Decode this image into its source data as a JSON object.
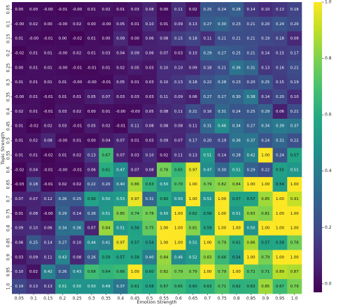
{
  "chart_data": {
    "type": "heatmap",
    "colormap": "viridis",
    "xlabel": "Emotion Strength",
    "ylabel": "Topic Strength",
    "x_categories": [
      "0.05",
      "0.1",
      "0.15",
      "0.2",
      "0.25",
      "0.3",
      "0.35",
      "0.4",
      "0.45",
      "0.5",
      "0.55",
      "0.6",
      "0.65",
      "0.7",
      "0.75",
      "0.8",
      "0.85",
      "0.9",
      "0.95",
      "1.0"
    ],
    "y_categories": [
      "0.05",
      "0.1",
      "0.15",
      "0.2",
      "0.25",
      "0.3",
      "0.35",
      "0.4",
      "0.45",
      "0.5",
      "0.55",
      "0.6",
      "0.65",
      "0.7",
      "0.75",
      "0.8",
      "0.85",
      "0.9",
      "0.95",
      "1.0"
    ],
    "values": [
      [
        0.0,
        0.0,
        -0.0,
        -0.01,
        -0.0,
        0.01,
        0.02,
        0.01,
        0.03,
        0.08,
        0.0,
        0.11,
        0.02,
        0.25,
        0.24,
        0.28,
        0.14,
        0.1,
        0.13,
        0.18
      ],
      [
        -0.0,
        0.02,
        0.0,
        -0.0,
        0.02,
        0.0,
        -0.0,
        0.05,
        0.01,
        0.1,
        0.01,
        0.09,
        0.13,
        0.27,
        0.3,
        0.23,
        0.21,
        0.2,
        0.24,
        0.2
      ],
      [
        0.01,
        -0.0,
        -0.01,
        0.0,
        -0.02,
        0.01,
        0.0,
        0.09,
        0.0,
        0.06,
        0.08,
        0.15,
        0.18,
        0.11,
        0.21,
        0.21,
        0.21,
        0.19,
        0.18,
        0.09
      ],
      [
        -0.02,
        0.01,
        0.01,
        -0.0,
        0.02,
        0.01,
        0.03,
        0.04,
        0.09,
        0.06,
        0.07,
        0.03,
        0.1,
        0.29,
        0.27,
        0.25,
        0.21,
        0.14,
        0.15,
        0.17
      ],
      [
        0.0,
        0.01,
        0.01,
        -0.0,
        -0.01,
        -0.01,
        0.01,
        0.02,
        0.05,
        0.03,
        0.1,
        0.1,
        0.09,
        0.18,
        0.21,
        0.36,
        0.31,
        0.13,
        0.16,
        0.21
      ],
      [
        0.01,
        0.01,
        0.01,
        0.01,
        -0.0,
        -0.0,
        -0.01,
        0.05,
        0.01,
        0.03,
        0.1,
        0.13,
        0.18,
        0.22,
        0.28,
        0.23,
        0.2,
        0.25,
        0.15,
        0.19
      ],
      [
        -0.0,
        0.01,
        -0.01,
        0.01,
        0.01,
        0.05,
        0.07,
        0.03,
        0.03,
        0.03,
        0.11,
        0.09,
        0.06,
        0.27,
        0.27,
        0.3,
        0.38,
        0.14,
        0.2,
        0.1
      ],
      [
        0.02,
        0.01,
        -0.01,
        0.03,
        0.02,
        0.0,
        0.01,
        -0.0,
        -0.0,
        0.05,
        0.08,
        0.11,
        0.21,
        0.16,
        0.31,
        0.24,
        0.25,
        0.29,
        0.06,
        0.21
      ],
      [
        0.01,
        -0.02,
        0.02,
        0.03,
        -0.01,
        0.05,
        0.02,
        -0.01,
        0.11,
        0.08,
        0.08,
        0.08,
        0.11,
        0.31,
        0.46,
        0.34,
        0.27,
        0.34,
        0.39,
        0.37
      ],
      [
        0.01,
        0.02,
        0.08,
        -0.0,
        0.01,
        0.0,
        0.04,
        0.07,
        0.01,
        0.03,
        0.09,
        0.07,
        0.17,
        0.2,
        0.19,
        0.36,
        0.37,
        0.24,
        0.31,
        0.22
      ],
      [
        0.01,
        0.01,
        -0.02,
        0.01,
        0.02,
        0.13,
        0.67,
        0.07,
        0.03,
        0.1,
        0.02,
        0.11,
        0.13,
        0.51,
        0.14,
        0.28,
        0.42,
        1.0,
        0.24,
        0.57
      ],
      [
        -0.02,
        0.04,
        -0.01,
        -0.0,
        -0.01,
        0.06,
        0.61,
        0.47,
        0.07,
        0.08,
        0.78,
        0.65,
        0.97,
        0.47,
        0.3,
        0.51,
        0.29,
        0.22,
        0.55,
        0.51
      ],
      [
        -0.03,
        0.18,
        -0.01,
        0.02,
        0.02,
        0.22,
        0.2,
        0.4,
        0.86,
        0.63,
        0.5,
        0.7,
        1.0,
        0.79,
        0.82,
        0.84,
        1.0,
        1.0,
        0.54,
        1.0
      ],
      [
        0.07,
        0.07,
        0.12,
        0.26,
        0.25,
        0.56,
        0.5,
        0.53,
        0.97,
        0.31,
        0.6,
        0.5,
        1.0,
        0.51,
        1.0,
        0.57,
        0.57,
        0.85,
        1.0,
        0.91
      ],
      [
        0.01,
        0.08,
        -0.0,
        0.29,
        0.14,
        0.26,
        0.51,
        0.8,
        0.74,
        0.78,
        0.5,
        1.0,
        0.62,
        0.58,
        1.0,
        0.51,
        0.83,
        0.81,
        1.0,
        1.0
      ],
      [
        0.09,
        0.1,
        0.06,
        0.34,
        0.36,
        0.07,
        0.84,
        0.51,
        0.56,
        0.75,
        1.0,
        1.0,
        0.81,
        0.59,
        1.0,
        1.0,
        0.5,
        1.0,
        1.0,
        1.0
      ],
      [
        0.06,
        0.25,
        0.14,
        0.27,
        0.1,
        0.44,
        0.41,
        0.97,
        0.57,
        0.54,
        1.0,
        1.0,
        0.51,
        1.0,
        0.79,
        0.61,
        0.86,
        0.57,
        0.58,
        0.78
      ],
      [
        0.03,
        0.09,
        0.11,
        0.43,
        0.08,
        0.26,
        0.59,
        0.57,
        0.58,
        0.4,
        0.84,
        0.46,
        0.52,
        0.83,
        0.66,
        0.54,
        1.0,
        0.79,
        1.0,
        1.0
      ],
      [
        0.1,
        0.02,
        0.42,
        0.26,
        0.43,
        0.68,
        0.64,
        0.66,
        1.0,
        0.6,
        0.82,
        0.79,
        0.79,
        1.0,
        0.79,
        1.0,
        0.72,
        0.71,
        0.89,
        0.87
      ],
      [
        0.19,
        0.13,
        0.13,
        0.51,
        0.5,
        0.5,
        0.49,
        0.37,
        0.61,
        0.58,
        0.67,
        0.65,
        0.6,
        0.63,
        0.71,
        0.62,
        0.63,
        0.85,
        0.67,
        0.79
      ]
    ],
    "value_labels": [
      [
        "0.00",
        "0.00",
        "-0.00",
        "-0.01",
        "-0.00",
        "0.01",
        "0.02",
        "0.01",
        "0.03",
        "0.08",
        "0.00",
        "0.11",
        "0.02",
        "0.25",
        "0.24",
        "0.28",
        "0.14",
        "0.10",
        "0.13",
        "0.18"
      ],
      [
        "-0.00",
        "0.02",
        "0.00",
        "-0.00",
        "0.02",
        "0.00",
        "-0.00",
        "0.05",
        "0.01",
        "0.10",
        "0.01",
        "0.09",
        "0.13",
        "0.27",
        "0.30",
        "0.23",
        "0.21",
        "0.20",
        "0.24",
        "0.20"
      ],
      [
        "0.01",
        "-0.00",
        "-0.01",
        "0.00",
        "-0.02",
        "0.01",
        "0.00",
        "0.09",
        "0.00",
        "0.06",
        "0.08",
        "0.15",
        "0.18",
        "0.11",
        "0.21",
        "0.21",
        "0.21",
        "0.19",
        "0.18",
        "0.09"
      ],
      [
        "-0.02",
        "0.01",
        "0.01",
        "-0.00",
        "0.02",
        "0.01",
        "0.03",
        "0.04",
        "0.09",
        "0.06",
        "0.07",
        "0.03",
        "0.10",
        "0.29",
        "0.27",
        "0.25",
        "0.21",
        "0.14",
        "0.15",
        "0.17"
      ],
      [
        "0.00",
        "0.01",
        "0.01",
        "-0.00",
        "-0.01",
        "-0.01",
        "0.01",
        "0.02",
        "0.05",
        "0.03",
        "0.10",
        "0.10",
        "0.09",
        "0.18",
        "0.21",
        "0.36",
        "0.31",
        "0.13",
        "0.16",
        "0.21"
      ],
      [
        "0.01",
        "0.01",
        "0.01",
        "0.01",
        "-0.00",
        "-0.00",
        "-0.01",
        "0.05",
        "0.01",
        "0.03",
        "0.10",
        "0.13",
        "0.18",
        "0.22",
        "0.28",
        "0.23",
        "0.20",
        "0.25",
        "0.15",
        "0.19"
      ],
      [
        "-0.00",
        "0.01",
        "-0.01",
        "0.01",
        "0.01",
        "0.05",
        "0.07",
        "0.03",
        "0.03",
        "0.03",
        "0.11",
        "0.09",
        "0.06",
        "0.27",
        "0.27",
        "0.30",
        "0.38",
        "0.14",
        "0.20",
        "0.10"
      ],
      [
        "0.02",
        "0.01",
        "-0.01",
        "0.03",
        "0.02",
        "0.00",
        "0.01",
        "-0.00",
        "-0.00",
        "0.05",
        "0.08",
        "0.11",
        "0.21",
        "0.16",
        "0.31",
        "0.24",
        "0.25",
        "0.29",
        "0.06",
        "0.21"
      ],
      [
        "0.01",
        "-0.02",
        "0.02",
        "0.03",
        "-0.01",
        "0.05",
        "0.02",
        "-0.01",
        "0.11",
        "0.08",
        "0.08",
        "0.08",
        "0.11",
        "0.31",
        "0.46",
        "0.34",
        "0.27",
        "0.34",
        "0.39",
        "0.37"
      ],
      [
        "0.01",
        "0.02",
        "0.08",
        "-0.00",
        "0.01",
        "0.00",
        "0.04",
        "0.07",
        "0.01",
        "0.03",
        "0.09",
        "0.07",
        "0.17",
        "0.20",
        "0.19",
        "0.36",
        "0.37",
        "0.24",
        "0.31",
        "0.22"
      ],
      [
        "0.01",
        "0.01",
        "-0.02",
        "0.01",
        "0.02",
        "0.13",
        "0.67",
        "0.07",
        "0.03",
        "0.10",
        "0.02",
        "0.11",
        "0.13",
        "0.51",
        "0.14",
        "0.28",
        "0.42",
        "1.00",
        "0.24",
        "0.57"
      ],
      [
        "-0.02",
        "0.04",
        "-0.01",
        "-0.00",
        "-0.01",
        "0.06",
        "0.61",
        "0.47",
        "0.07",
        "0.08",
        "0.78",
        "0.65",
        "0.97",
        "0.47",
        "0.30",
        "0.51",
        "0.29",
        "0.22",
        "0.55",
        "0.51"
      ],
      [
        "-0.03",
        "0.18",
        "-0.01",
        "0.02",
        "0.02",
        "0.22",
        "0.20",
        "0.40",
        "0.86",
        "0.63",
        "0.50",
        "0.70",
        "1.00",
        "0.79",
        "0.82",
        "0.84",
        "1.00",
        "1.00",
        "0.54",
        "1.00"
      ],
      [
        "0.07",
        "0.07",
        "0.12",
        "0.26",
        "0.25",
        "0.56",
        "0.50",
        "0.53",
        "0.97",
        "0.31",
        "0.60",
        "0.50",
        "1.00",
        "0.51",
        "1.00",
        "0.57",
        "0.57",
        "0.85",
        "1.00",
        "0.91"
      ],
      [
        "0.01",
        "0.08",
        "-0.00",
        "0.29",
        "0.14",
        "0.26",
        "0.51",
        "0.80",
        "0.74",
        "0.78",
        "0.50",
        "1.00",
        "0.62",
        "0.58",
        "1.00",
        "0.51",
        "0.83",
        "0.81",
        "1.00",
        "1.00"
      ],
      [
        "0.09",
        "0.10",
        "0.06",
        "0.34",
        "0.36",
        "0.07",
        "0.84",
        "0.51",
        "0.56",
        "0.75",
        "1.00",
        "1.00",
        "0.81",
        "0.59",
        "1.00",
        "1.00",
        "0.50",
        "1.00",
        "1.00",
        "1.00"
      ],
      [
        "0.06",
        "0.25",
        "0.14",
        "0.27",
        "0.10",
        "0.44",
        "0.41",
        "0.97",
        "0.57",
        "0.54",
        "1.00",
        "1.00",
        "0.51",
        "1.00",
        "0.79",
        "0.61",
        "0.86",
        "0.57",
        "0.58",
        "0.78"
      ],
      [
        "0.03",
        "0.09",
        "0.11",
        "0.43",
        "0.08",
        "0.26",
        "0.59",
        "0.57",
        "0.58",
        "0.40",
        "0.84",
        "0.46",
        "0.52",
        "0.83",
        "0.66",
        "0.54",
        "1.00",
        "0.79",
        "1.00",
        "1.00"
      ],
      [
        "0.10",
        "0.02",
        "0.42",
        "0.26",
        "0.43",
        "0.68",
        "0.64",
        "0.66",
        "1.00",
        "0.60",
        "0.82",
        "0.79",
        "0.79",
        "1.00",
        "0.79",
        "1.00",
        "0.72",
        "0.71",
        "0.89",
        "0.87"
      ],
      [
        "0.19",
        "0.13",
        "0.13",
        "0.51",
        "0.50",
        "0.50",
        "0.49",
        "0.37",
        "0.61",
        "0.58",
        "0.67",
        "0.65",
        "0.60",
        "0.63",
        "0.71",
        "0.62",
        "0.63",
        "0.85",
        "0.67",
        "0.79"
      ]
    ],
    "zlim": [
      -0.03,
      1.0
    ],
    "zticks": [
      {
        "value": 0,
        "label": "0.0"
      },
      0.2,
      0.4,
      0.6,
      0.8,
      {
        "value": 1,
        "label": "1.0"
      }
    ]
  }
}
